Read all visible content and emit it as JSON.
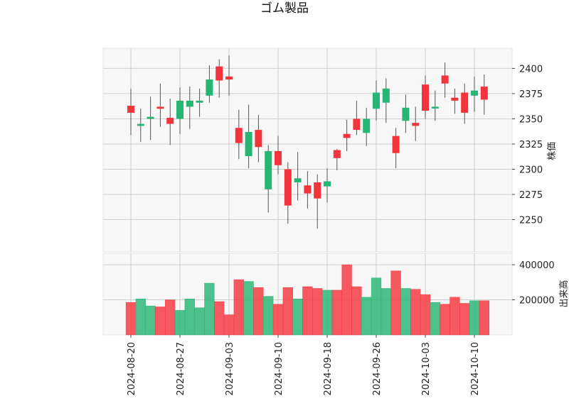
{
  "chart_data": {
    "type": "candlestick",
    "title": "ゴム製品",
    "price_label": "株価",
    "volume_label": "出来高",
    "up_color": "#26b574",
    "down_color": "#f4343c",
    "price_ylim": [
      2218,
      2420
    ],
    "price_ticks": [
      2250,
      2275,
      2300,
      2325,
      2350,
      2375,
      2400
    ],
    "volume_ylim": [
      0,
      465000
    ],
    "volume_ticks": [
      200000,
      400000
    ],
    "volume_tick_labels": [
      "200000",
      "400000"
    ],
    "grid": true,
    "x_tick_labels": [
      {
        "index": 0,
        "label": "2024-08-20"
      },
      {
        "index": 5,
        "label": "2024-08-27"
      },
      {
        "index": 10,
        "label": "2024-09-03"
      },
      {
        "index": 15,
        "label": "2024-09-10"
      },
      {
        "index": 20,
        "label": "2024-09-18"
      },
      {
        "index": 25,
        "label": "2024-09-26"
      },
      {
        "index": 30,
        "label": "2024-10-03"
      },
      {
        "index": 35,
        "label": "2024-10-10"
      }
    ],
    "candles": [
      {
        "date": "2024-08-20",
        "open": 2363,
        "high": 2380,
        "low": 2334,
        "close": 2356,
        "volume": 185000
      },
      {
        "date": "2024-08-21",
        "open": 2343,
        "high": 2360,
        "low": 2327,
        "close": 2345,
        "volume": 205000
      },
      {
        "date": "2024-08-22",
        "open": 2350,
        "high": 2372,
        "low": 2329,
        "close": 2352,
        "volume": 165000
      },
      {
        "date": "2024-08-23",
        "open": 2362,
        "high": 2385,
        "low": 2342,
        "close": 2360,
        "volume": 160000
      },
      {
        "date": "2024-08-26",
        "open": 2351,
        "high": 2370,
        "low": 2324,
        "close": 2345,
        "volume": 200000
      },
      {
        "date": "2024-08-27",
        "open": 2350,
        "high": 2381,
        "low": 2335,
        "close": 2368,
        "volume": 140000
      },
      {
        "date": "2024-08-28",
        "open": 2362,
        "high": 2382,
        "low": 2340,
        "close": 2368,
        "volume": 205000
      },
      {
        "date": "2024-08-29",
        "open": 2366,
        "high": 2380,
        "low": 2352,
        "close": 2368,
        "volume": 155000
      },
      {
        "date": "2024-08-30",
        "open": 2373,
        "high": 2403,
        "low": 2366,
        "close": 2389,
        "volume": 295000
      },
      {
        "date": "2024-09-02",
        "open": 2402,
        "high": 2409,
        "low": 2371,
        "close": 2388,
        "volume": 190000
      },
      {
        "date": "2024-09-03",
        "open": 2392,
        "high": 2413,
        "low": 2373,
        "close": 2389,
        "volume": 115000
      },
      {
        "date": "2024-09-04",
        "open": 2341,
        "high": 2359,
        "low": 2310,
        "close": 2326,
        "volume": 315000
      },
      {
        "date": "2024-09-05",
        "open": 2313,
        "high": 2364,
        "low": 2301,
        "close": 2337,
        "volume": 305000
      },
      {
        "date": "2024-09-06",
        "open": 2339,
        "high": 2354,
        "low": 2307,
        "close": 2322,
        "volume": 270000
      },
      {
        "date": "2024-09-09",
        "open": 2280,
        "high": 2324,
        "low": 2257,
        "close": 2318,
        "volume": 220000
      },
      {
        "date": "2024-09-10",
        "open": 2318,
        "high": 2333,
        "low": 2295,
        "close": 2304,
        "volume": 175000
      },
      {
        "date": "2024-09-11",
        "open": 2300,
        "high": 2307,
        "low": 2246,
        "close": 2264,
        "volume": 270000
      },
      {
        "date": "2024-09-12",
        "open": 2287,
        "high": 2317,
        "low": 2269,
        "close": 2291,
        "volume": 205000
      },
      {
        "date": "2024-09-13",
        "open": 2284,
        "high": 2298,
        "low": 2261,
        "close": 2276,
        "volume": 275000
      },
      {
        "date": "2024-09-17",
        "open": 2287,
        "high": 2295,
        "low": 2241,
        "close": 2271,
        "volume": 265000
      },
      {
        "date": "2024-09-18",
        "open": 2283,
        "high": 2301,
        "low": 2267,
        "close": 2288,
        "volume": 255000
      },
      {
        "date": "2024-09-19",
        "open": 2319,
        "high": 2320,
        "low": 2299,
        "close": 2311,
        "volume": 255000
      },
      {
        "date": "2024-09-20",
        "open": 2335,
        "high": 2349,
        "low": 2318,
        "close": 2331,
        "volume": 400000
      },
      {
        "date": "2024-09-24",
        "open": 2350,
        "high": 2368,
        "low": 2334,
        "close": 2339,
        "volume": 275000
      },
      {
        "date": "2024-09-25",
        "open": 2336,
        "high": 2361,
        "low": 2323,
        "close": 2350,
        "volume": 215000
      },
      {
        "date": "2024-09-26",
        "open": 2360,
        "high": 2388,
        "low": 2348,
        "close": 2376,
        "volume": 325000
      },
      {
        "date": "2024-09-27",
        "open": 2366,
        "high": 2390,
        "low": 2346,
        "close": 2380,
        "volume": 265000
      },
      {
        "date": "2024-09-30",
        "open": 2333,
        "high": 2341,
        "low": 2301,
        "close": 2316,
        "volume": 365000
      },
      {
        "date": "2024-10-01",
        "open": 2348,
        "high": 2374,
        "low": 2336,
        "close": 2361,
        "volume": 265000
      },
      {
        "date": "2024-10-02",
        "open": 2346,
        "high": 2362,
        "low": 2328,
        "close": 2343,
        "volume": 260000
      },
      {
        "date": "2024-10-03",
        "open": 2384,
        "high": 2393,
        "low": 2350,
        "close": 2358,
        "volume": 230000
      },
      {
        "date": "2024-10-04",
        "open": 2362,
        "high": 2378,
        "low": 2348,
        "close": 2362,
        "volume": 185000
      },
      {
        "date": "2024-10-07",
        "open": 2393,
        "high": 2406,
        "low": 2371,
        "close": 2385,
        "volume": 175000
      },
      {
        "date": "2024-10-08",
        "open": 2371,
        "high": 2380,
        "low": 2355,
        "close": 2368,
        "volume": 215000
      },
      {
        "date": "2024-10-09",
        "open": 2376,
        "high": 2385,
        "low": 2345,
        "close": 2356,
        "volume": 180000
      },
      {
        "date": "2024-10-10",
        "open": 2373,
        "high": 2392,
        "low": 2357,
        "close": 2378,
        "volume": 195000
      },
      {
        "date": "2024-10-11",
        "open": 2382,
        "high": 2394,
        "low": 2354,
        "close": 2369,
        "volume": 195000
      }
    ]
  }
}
